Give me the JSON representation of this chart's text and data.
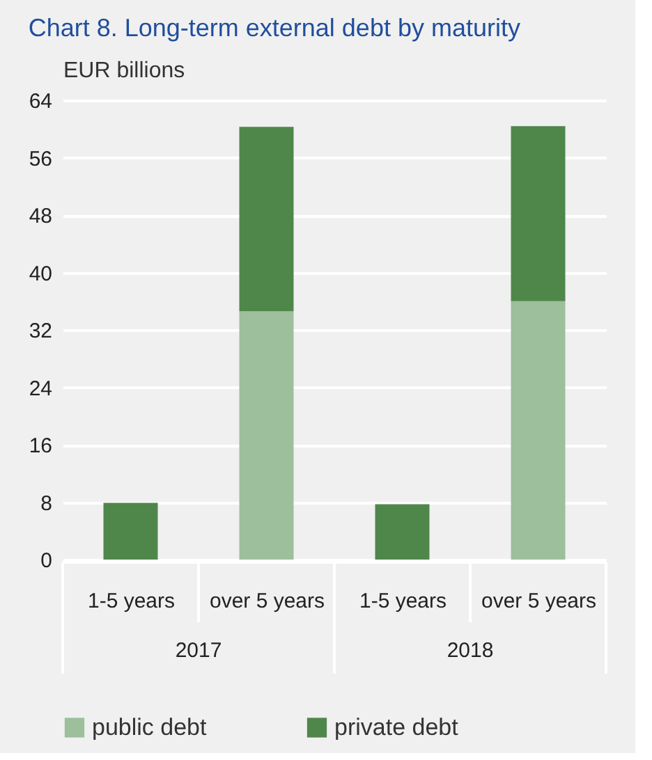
{
  "chart_data": {
    "type": "bar",
    "title": "Chart 8. Long-term external debt by maturity",
    "ylabel": "EUR billions",
    "categories": [
      "1-5 years",
      "over 5 years",
      "1-5 years",
      "over 5 years"
    ],
    "annotations": [
      "2017",
      "2018"
    ],
    "stacked": true,
    "series": [
      {
        "name": "public debt",
        "color": "#9dbf9b",
        "values": [
          0,
          34.6,
          0,
          36.0
        ]
      },
      {
        "name": "private debt",
        "color": "#4f874a",
        "values": [
          7.9,
          25.7,
          7.7,
          24.4
        ]
      }
    ],
    "ylim": [
      0,
      64
    ],
    "yticks": [
      0,
      8,
      16,
      24,
      32,
      40,
      48,
      56,
      64
    ],
    "grid": "y",
    "legend": "bottom left"
  }
}
